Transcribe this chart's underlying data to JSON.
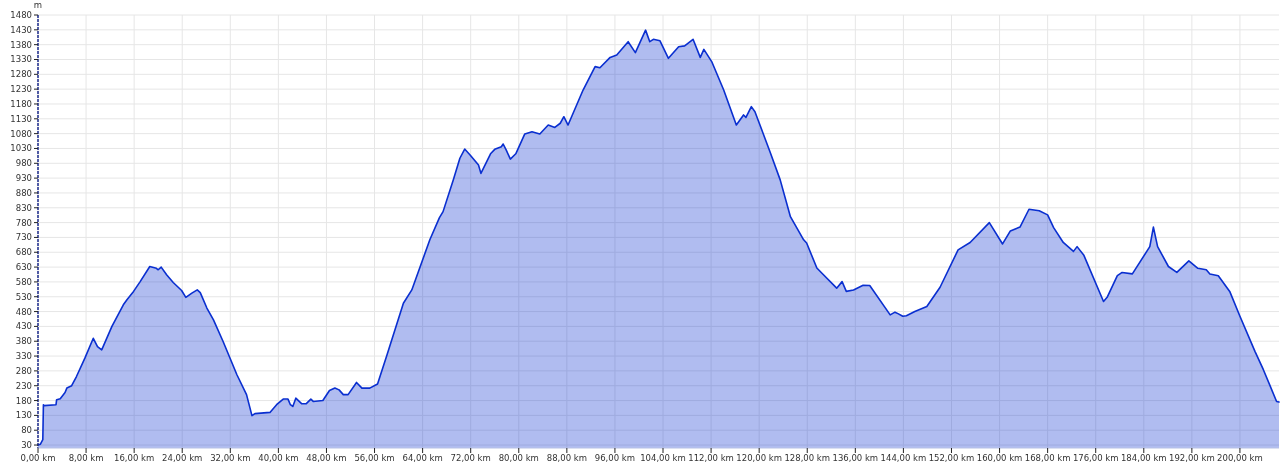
{
  "chart_data": {
    "type": "area",
    "ylabel": "m",
    "grid": true,
    "xlim": [
      0,
      206.5
    ],
    "ylim": [
      20,
      1480
    ],
    "xticks": [
      {
        "value": 0,
        "label": "0,00 km"
      },
      {
        "value": 8,
        "label": "8,00 km"
      },
      {
        "value": 16,
        "label": "16,00 km"
      },
      {
        "value": 24,
        "label": "24,00 km"
      },
      {
        "value": 32,
        "label": "32,00 km"
      },
      {
        "value": 40,
        "label": "40,00 km"
      },
      {
        "value": 48,
        "label": "48,00 km"
      },
      {
        "value": 56,
        "label": "56,00 km"
      },
      {
        "value": 64,
        "label": "64,00 km"
      },
      {
        "value": 72,
        "label": "72,00 km"
      },
      {
        "value": 80,
        "label": "80,00 km"
      },
      {
        "value": 88,
        "label": "88,00 km"
      },
      {
        "value": 96,
        "label": "96,00 km"
      },
      {
        "value": 104,
        "label": "104,00 km"
      },
      {
        "value": 112,
        "label": "112,00 km"
      },
      {
        "value": 120,
        "label": "120,00 km"
      },
      {
        "value": 128,
        "label": "128,00 km"
      },
      {
        "value": 136,
        "label": "136,00 km"
      },
      {
        "value": 144,
        "label": "144,00 km"
      },
      {
        "value": 152,
        "label": "152,00 km"
      },
      {
        "value": 160,
        "label": "160,00 km"
      },
      {
        "value": 168,
        "label": "168,00 km"
      },
      {
        "value": 176,
        "label": "176,00 km"
      },
      {
        "value": 184,
        "label": "184,00 km"
      },
      {
        "value": 192,
        "label": "192,00 km"
      },
      {
        "value": 200,
        "label": "200,00 km"
      }
    ],
    "yticks": [
      30,
      80,
      130,
      180,
      230,
      280,
      330,
      380,
      430,
      480,
      530,
      580,
      630,
      680,
      730,
      780,
      830,
      880,
      930,
      980,
      1030,
      1080,
      1130,
      1180,
      1230,
      1280,
      1330,
      1380,
      1430,
      1480
    ],
    "series": [
      {
        "color": "#0a2fd0",
        "x": [
          0,
          0.4,
          0.8,
          0.9,
          1.0,
          3.0,
          3.1,
          3.7,
          4.5,
          4.8,
          5.6,
          6.4,
          7.8,
          9.2,
          9.9,
          10.6,
          12.3,
          14.2,
          14.8,
          15.9,
          17.0,
          18.6,
          19.7,
          20.0,
          20.5,
          21.4,
          22.5,
          23.9,
          24.6,
          25.6,
          26.5,
          27.0,
          28.1,
          29.2,
          30.8,
          33.1,
          34.7,
          35.6,
          36.1,
          38.6,
          39.7,
          40.8,
          41.6,
          42.0,
          42.4,
          42.9,
          43.9,
          44.6,
          45.4,
          45.8,
          47.4,
          48.5,
          49.4,
          50.1,
          50.8,
          51.6,
          53.0,
          53.9,
          55.2,
          56.5,
          58.0,
          60.8,
          62.2,
          65.2,
          66.8,
          67.4,
          69.1,
          70.2,
          71.0,
          71.9,
          73.3,
          73.7,
          75.3,
          76.0,
          77.1,
          77.4,
          77.9,
          78.6,
          79.5,
          81.0,
          82.2,
          83.5,
          84.9,
          86.0,
          86.9,
          87.5,
          88.2,
          90.7,
          92.7,
          93.5,
          95.2,
          96.3,
          98.2,
          99.4,
          101.1,
          101.8,
          102.4,
          103.5,
          104.9,
          106.6,
          107.6,
          109.0,
          110.2,
          110.8,
          112.1,
          114.1,
          116.2,
          117.4,
          117.8,
          118.7,
          119.3,
          121.8,
          123.5,
          125.2,
          127.4,
          127.9,
          129.6,
          130.7,
          132.9,
          133.8,
          134.5,
          135.7,
          137.3,
          138.4,
          141.8,
          142.6,
          143.1,
          143.9,
          144.5,
          145.9,
          147.9,
          150.1,
          153.1,
          155.1,
          158.3,
          160.5,
          161.8,
          163.4,
          164.9,
          166.6,
          168.0,
          169.0,
          170.6,
          172.3,
          172.9,
          174.0,
          177.3,
          177.9,
          179.6,
          180.4,
          182.1,
          185.0,
          185.6,
          186.3,
          188.1,
          189.5,
          191.5,
          193.0,
          194.4,
          195.0,
          196.4,
          198.3,
          200.0,
          202.5,
          203.9,
          206.1,
          206.5
        ],
        "values": [
          30,
          33,
          48,
          166,
          163,
          166,
          183,
          186,
          207,
          222,
          230,
          261,
          323,
          390,
          362,
          351,
          430,
          503,
          520,
          548,
          581,
          632,
          626,
          621,
          630,
          604,
          578,
          551,
          528,
          542,
          553,
          544,
          492,
          452,
          379,
          267,
          200,
          129,
          136,
          140,
          166,
          185,
          185,
          166,
          160,
          188,
          169,
          169,
          185,
          177,
          180,
          214,
          222,
          216,
          200,
          200,
          241,
          222,
          222,
          236,
          329,
          508,
          553,
          722,
          797,
          817,
          924,
          997,
          1028,
          1008,
          974,
          946,
          1012,
          1027,
          1036,
          1045,
          1025,
          994,
          1012,
          1079,
          1086,
          1079,
          1109,
          1101,
          1115,
          1137,
          1109,
          1227,
          1306,
          1302,
          1337,
          1345,
          1390,
          1353,
          1429,
          1390,
          1398,
          1393,
          1334,
          1373,
          1376,
          1398,
          1337,
          1364,
          1323,
          1227,
          1109,
          1143,
          1135,
          1171,
          1154,
          1019,
          924,
          800,
          722,
          711,
          627,
          604,
          559,
          581,
          548,
          553,
          569,
          568,
          469,
          478,
          473,
          464,
          466,
          480,
          497,
          562,
          688,
          713,
          780,
          708,
          752,
          765,
          825,
          820,
          806,
          763,
          713,
          683,
          699,
          671,
          514,
          528,
          601,
          612,
          607,
          699,
          765,
          699,
          632,
          612,
          651,
          626,
          621,
          607,
          601,
          548,
          464,
          346,
          284,
          177,
          175
        ]
      }
    ]
  }
}
